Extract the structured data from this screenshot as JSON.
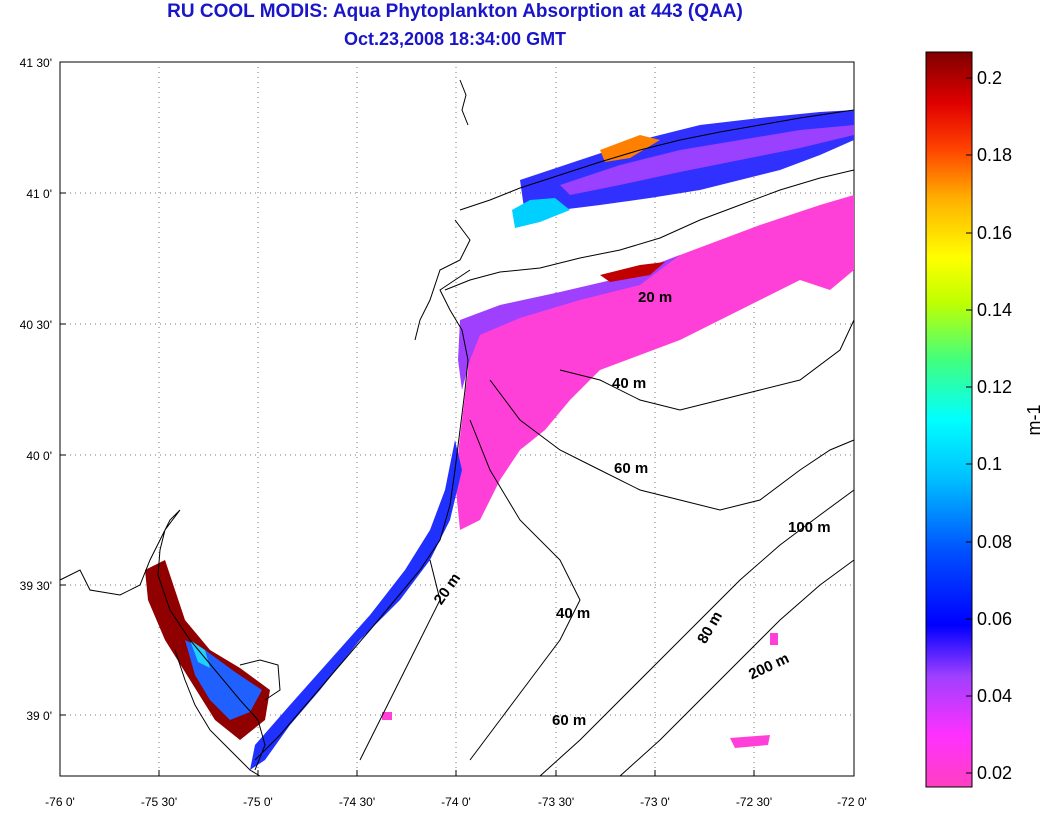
{
  "title": "RU COOL MODIS: Aqua Phytoplankton Absorption at 443 (QAA)",
  "subtitle": "Oct.23,2008 18:34:00 GMT",
  "axes": {
    "lon_ticks": [
      "-76 0'",
      "-75 30'",
      "-75 0'",
      "-74 30'",
      "-74 0'",
      "-73 30'",
      "-73 0'",
      "-72 30'",
      "-72 0'"
    ],
    "lat_ticks": [
      "41 30'",
      "41 0'",
      "40 30'",
      "40 0'",
      "39 30'",
      "39 0'"
    ]
  },
  "colorbar": {
    "label": "m-1",
    "ticks": [
      "0.2",
      "0.18",
      "0.16",
      "0.14",
      "0.12",
      "0.1",
      "0.08",
      "0.06",
      "0.04",
      "0.02"
    ],
    "colors": [
      "#ff40c0",
      "#ff30ff",
      "#c040ff",
      "#8040ff",
      "#0000ff",
      "#0060ff",
      "#00c0ff",
      "#00ffff",
      "#40ff80",
      "#c0ff00",
      "#ffff00",
      "#ffc000",
      "#ff6000",
      "#ff0000",
      "#c00000",
      "#800000"
    ]
  },
  "contour_labels": [
    "20 m",
    "40 m",
    "60 m",
    "100 m",
    "20 m",
    "40 m",
    "80 m",
    "200 m",
    "60 m"
  ]
}
